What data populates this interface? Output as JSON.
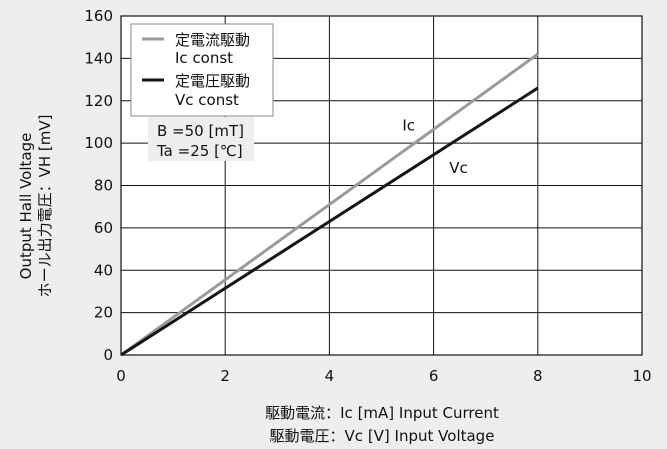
{
  "chart_data": {
    "type": "line",
    "x": [
      0,
      2,
      4,
      6,
      8
    ],
    "xlim": [
      0,
      10
    ],
    "ylim": [
      0,
      160
    ],
    "xticks": [
      "0",
      "2",
      "4",
      "6",
      "8",
      "10"
    ],
    "yticks": [
      "0",
      "20",
      "40",
      "60",
      "80",
      "100",
      "120",
      "140",
      "160"
    ],
    "grid": true,
    "xlabel_line1": "駆動電流：Ic [mA]  Input Current",
    "xlabel_line2": "駆動電圧：Vc [V]  Input Voltage",
    "ylabel_line1": "Output Hall Voltage",
    "ylabel_line2": "ホール出力電圧：VH [mV]",
    "series": [
      {
        "name": "定電流駆動",
        "name_sub": "Ic const",
        "x": [
          0,
          2,
          4,
          6,
          8
        ],
        "values": [
          0,
          35.5,
          71,
          106.5,
          142
        ],
        "color": "#9a9a9a",
        "annotation": "Ic",
        "annotation_pos": [
          5.4,
          106
        ]
      },
      {
        "name": "定電圧駆動",
        "name_sub": "Vc const",
        "x": [
          0,
          2,
          4,
          6,
          8
        ],
        "values": [
          0,
          31.5,
          63,
          94.5,
          126
        ],
        "color": "#151515",
        "annotation": "Vc",
        "annotation_pos": [
          6.3,
          86
        ]
      }
    ],
    "conditions": [
      "B   =50 [mT]",
      "Ta  =25 [℃]"
    ],
    "legend_position": "top-left"
  }
}
